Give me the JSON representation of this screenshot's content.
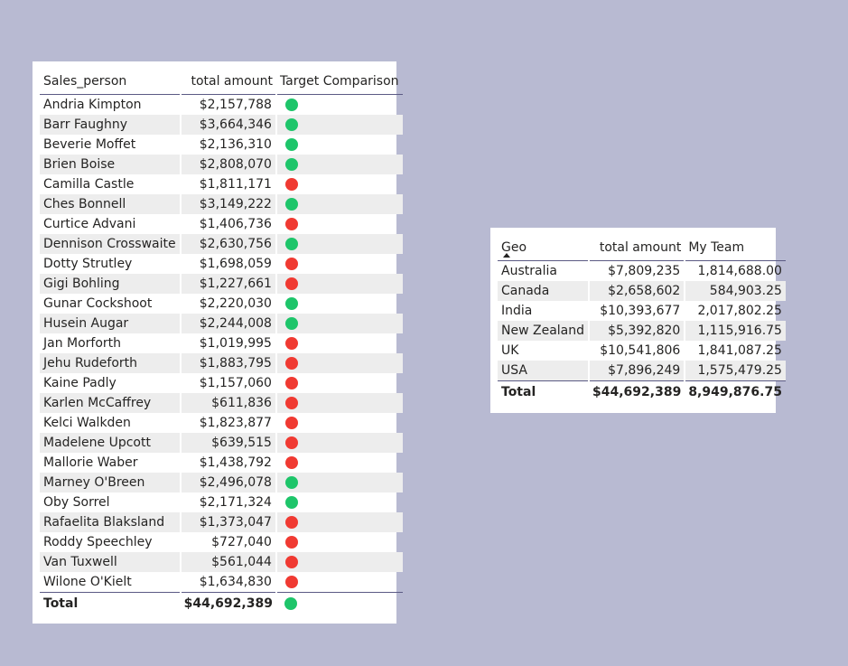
{
  "colors": {
    "green": "#1ec56a",
    "red": "#f03a32"
  },
  "sales_table": {
    "headers": [
      "Sales_person",
      "total amount",
      "Target Comparison"
    ],
    "rows": [
      {
        "name": "Andria Kimpton",
        "amount": "$2,157,788",
        "status": "green"
      },
      {
        "name": "Barr Faughny",
        "amount": "$3,664,346",
        "status": "green"
      },
      {
        "name": "Beverie Moffet",
        "amount": "$2,136,310",
        "status": "green"
      },
      {
        "name": "Brien Boise",
        "amount": "$2,808,070",
        "status": "green"
      },
      {
        "name": "Camilla Castle",
        "amount": "$1,811,171",
        "status": "red"
      },
      {
        "name": "Ches Bonnell",
        "amount": "$3,149,222",
        "status": "green"
      },
      {
        "name": "Curtice Advani",
        "amount": "$1,406,736",
        "status": "red"
      },
      {
        "name": "Dennison Crosswaite",
        "amount": "$2,630,756",
        "status": "green"
      },
      {
        "name": "Dotty Strutley",
        "amount": "$1,698,059",
        "status": "red"
      },
      {
        "name": "Gigi Bohling",
        "amount": "$1,227,661",
        "status": "red"
      },
      {
        "name": "Gunar Cockshoot",
        "amount": "$2,220,030",
        "status": "green"
      },
      {
        "name": "Husein Augar",
        "amount": "$2,244,008",
        "status": "green"
      },
      {
        "name": "Jan Morforth",
        "amount": "$1,019,995",
        "status": "red"
      },
      {
        "name": "Jehu Rudeforth",
        "amount": "$1,883,795",
        "status": "red"
      },
      {
        "name": "Kaine Padly",
        "amount": "$1,157,060",
        "status": "red"
      },
      {
        "name": "Karlen McCaffrey",
        "amount": "$611,836",
        "status": "red"
      },
      {
        "name": "Kelci Walkden",
        "amount": "$1,823,877",
        "status": "red"
      },
      {
        "name": "Madelene Upcott",
        "amount": "$639,515",
        "status": "red"
      },
      {
        "name": "Mallorie Waber",
        "amount": "$1,438,792",
        "status": "red"
      },
      {
        "name": "Marney O'Breen",
        "amount": "$2,496,078",
        "status": "green"
      },
      {
        "name": "Oby Sorrel",
        "amount": "$2,171,324",
        "status": "green"
      },
      {
        "name": "Rafaelita Blaksland",
        "amount": "$1,373,047",
        "status": "red"
      },
      {
        "name": "Roddy Speechley",
        "amount": "$727,040",
        "status": "red"
      },
      {
        "name": "Van Tuxwell",
        "amount": "$561,044",
        "status": "red"
      },
      {
        "name": "Wilone O'Kielt",
        "amount": "$1,634,830",
        "status": "red"
      }
    ],
    "total": {
      "label": "Total",
      "amount": "$44,692,389",
      "status": "green"
    }
  },
  "geo_table": {
    "headers": [
      "Geo",
      "total amount",
      "My Team"
    ],
    "rows": [
      {
        "geo": "Australia",
        "amount": "$7,809,235",
        "team": "1,814,688.00"
      },
      {
        "geo": "Canada",
        "amount": "$2,658,602",
        "team": "584,903.25"
      },
      {
        "geo": "India",
        "amount": "$10,393,677",
        "team": "2,017,802.25"
      },
      {
        "geo": "New Zealand",
        "amount": "$5,392,820",
        "team": "1,115,916.75"
      },
      {
        "geo": "UK",
        "amount": "$10,541,806",
        "team": "1,841,087.25"
      },
      {
        "geo": "USA",
        "amount": "$7,896,249",
        "team": "1,575,479.25"
      }
    ],
    "total": {
      "label": "Total",
      "amount": "$44,692,389",
      "team": "8,949,876.75"
    }
  }
}
